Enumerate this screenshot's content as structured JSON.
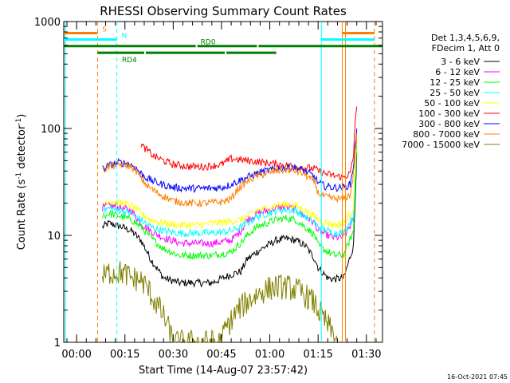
{
  "chart_data": {
    "type": "line",
    "title": "RHESSI Observing Summary Count Rates",
    "xlabel": "Start Time (14-Aug-07 23:57:42)",
    "ylabel_main": "Count Rate (s",
    "ylabel_sup1": "-1",
    "ylabel_mid": " detector",
    "ylabel_sup2": "-1",
    "ylabel_end": ")",
    "y_log": true,
    "ylim": [
      1,
      1000
    ],
    "xlim_minutes": [
      -4,
      95
    ],
    "x_tick_labels": [
      "00:00",
      "00:15",
      "00:30",
      "00:45",
      "01:00",
      "01:15",
      "01:30"
    ],
    "x_tick_minutes": [
      0,
      15,
      30,
      45,
      60,
      75,
      90
    ],
    "y_tick_labels": [
      "1",
      "10",
      "100",
      "1000"
    ],
    "y_tick_values": [
      1,
      10,
      100,
      1000
    ],
    "legend_header": [
      "Det 1,3,4,5,6,9,",
      "FDecim 1, Att 0"
    ],
    "legend_placement": "right",
    "timestamp": "16-Oct-2021 07:45",
    "series": [
      {
        "name": "3 - 6 keV",
        "color": "#000000",
        "x": [
          8,
          10,
          14,
          17,
          20,
          23,
          27,
          32,
          37,
          42,
          48,
          51,
          53,
          56,
          59,
          62,
          65,
          68,
          71,
          74,
          75,
          78,
          80,
          83,
          86,
          87
        ],
        "y": [
          12,
          13,
          12,
          11,
          9,
          6,
          4,
          3.6,
          3.6,
          3.6,
          4.3,
          4.6,
          6,
          7,
          8,
          9,
          9.3,
          9,
          8,
          6,
          5,
          4,
          3.9,
          4,
          8,
          60
        ]
      },
      {
        "name": "6 - 12 keV",
        "color": "#ff00ff",
        "x": [
          8,
          10,
          14,
          17,
          20,
          23,
          27,
          32,
          37,
          42,
          48,
          51,
          53,
          56,
          59,
          62,
          65,
          68,
          71,
          74,
          75,
          78,
          80,
          83,
          86,
          87
        ],
        "y": [
          18,
          19,
          18,
          17,
          13,
          11,
          9.5,
          8.5,
          8.4,
          8.4,
          9,
          11,
          14,
          16,
          17,
          18,
          18.5,
          17.5,
          15,
          13,
          11,
          10,
          9.5,
          9.6,
          14,
          80
        ]
      },
      {
        "name": "12 - 25 keV",
        "color": "#00ff00",
        "x": [
          8,
          10,
          14,
          17,
          20,
          23,
          27,
          32,
          37,
          42,
          48,
          51,
          53,
          56,
          59,
          62,
          65,
          68,
          71,
          74,
          75,
          78,
          80,
          83,
          86,
          87
        ],
        "y": [
          15,
          16,
          15,
          14,
          12,
          9.5,
          7.5,
          6.5,
          6.5,
          6.5,
          7,
          8.5,
          10,
          12,
          13,
          14,
          14.5,
          14,
          12,
          10,
          8,
          7,
          6.5,
          6.6,
          11,
          70
        ]
      },
      {
        "name": "25 - 50 keV",
        "color": "#00ffff",
        "x": [
          8,
          10,
          14,
          17,
          20,
          23,
          27,
          32,
          37,
          42,
          48,
          51,
          53,
          56,
          59,
          62,
          65,
          68,
          71,
          74,
          75,
          78,
          80,
          83,
          86,
          87
        ],
        "y": [
          17,
          18,
          17,
          16,
          14,
          12,
          11,
          10.5,
          10.5,
          10.5,
          11,
          12,
          13,
          15,
          16,
          17,
          17.5,
          17,
          15,
          13,
          12,
          11,
          10.5,
          10.7,
          15,
          80
        ]
      },
      {
        "name": "50 - 100 keV",
        "color": "#ffff00",
        "x": [
          8,
          10,
          14,
          17,
          20,
          23,
          27,
          32,
          37,
          42,
          48,
          51,
          53,
          56,
          59,
          62,
          65,
          68,
          71,
          74,
          75,
          78,
          80,
          83,
          86,
          87
        ],
        "y": [
          20,
          21,
          20,
          19,
          16,
          14,
          13,
          12.5,
          12.5,
          13,
          13.5,
          14,
          15,
          17,
          18,
          19,
          19.5,
          19,
          17,
          15,
          14,
          13,
          12.5,
          13,
          18,
          90
        ]
      },
      {
        "name": "100 - 300 keV",
        "color": "#ff0000",
        "x": [
          20,
          22,
          24,
          27,
          30,
          35,
          40,
          45,
          48,
          48.5,
          74,
          75,
          77,
          80,
          83,
          85,
          86,
          86.5,
          87
        ],
        "y": [
          70,
          62,
          55,
          50,
          46,
          44,
          44,
          46,
          52,
          52,
          42,
          40,
          38,
          36,
          35,
          38,
          55,
          120,
          160
        ]
      },
      {
        "name": "300 - 800 keV",
        "color": "#0000ff",
        "x": [
          8,
          10,
          13,
          16,
          18,
          20,
          22,
          25,
          30,
          35,
          40,
          45,
          48,
          50,
          53,
          56,
          59,
          62,
          65,
          68,
          71,
          74,
          75,
          77,
          80,
          83,
          85,
          86,
          87
        ],
        "y": [
          42,
          45,
          48,
          47,
          44,
          38,
          34,
          31,
          28,
          27.5,
          27.5,
          28,
          30,
          32,
          35,
          38,
          40,
          42,
          43,
          43,
          40,
          35,
          31,
          29,
          28,
          28,
          30,
          45,
          100
        ]
      },
      {
        "name": "800 - 7000 keV",
        "color": "#ff8000",
        "x": [
          8,
          10,
          13,
          16,
          18,
          20,
          22,
          25,
          30,
          35,
          40,
          45,
          48,
          50,
          53,
          56,
          59,
          62,
          65,
          68,
          71,
          74,
          75,
          77,
          80,
          83,
          85,
          86,
          87
        ],
        "y": [
          40,
          44,
          46,
          45,
          42,
          34,
          29,
          25,
          21,
          20,
          20,
          20.5,
          22,
          27,
          32,
          36,
          38,
          40,
          41,
          40,
          37,
          31,
          25,
          23,
          22,
          22,
          24,
          38,
          90
        ]
      },
      {
        "name": "7000 - 15000 keV",
        "color": "#808000",
        "x": [
          8,
          10,
          14,
          17,
          20,
          22,
          24,
          26,
          28,
          30,
          45,
          46,
          48,
          50,
          53,
          56,
          58,
          60,
          62,
          65,
          68,
          70,
          72,
          74,
          75,
          77,
          79,
          81
        ],
        "y": [
          4,
          4.5,
          4.5,
          4,
          3.8,
          3.2,
          2.5,
          2,
          1.5,
          1,
          1,
          1.3,
          1.6,
          2,
          2.4,
          2.8,
          3,
          3.2,
          3.3,
          3.3,
          3.1,
          2.9,
          2.6,
          2.3,
          2,
          1.6,
          1.3,
          1
        ]
      }
    ],
    "state_bars": [
      {
        "label": "S",
        "color": "#ff8000",
        "y_value": 780,
        "segments": [
          [
            -4,
            6.5
          ],
          [
            82.5,
            92.5
          ]
        ]
      },
      {
        "label": "N",
        "color": "#00ffff",
        "y_value": 680,
        "segments": [
          [
            -4,
            12.5
          ],
          [
            76,
            92.5
          ]
        ]
      },
      {
        "label": "RD0",
        "color": "#008000",
        "y_value": 590,
        "segments": [
          [
            -4,
            37
          ],
          [
            37.5,
            56
          ],
          [
            56.5,
            95
          ]
        ]
      },
      {
        "label": "RD4",
        "color": "#008000",
        "y_value": 510,
        "segments": [
          [
            6.5,
            21
          ],
          [
            21.5,
            46
          ],
          [
            46.5,
            62
          ]
        ]
      }
    ],
    "state_labels": {
      "S": "S",
      "N": "N",
      "RD0": "RD0",
      "RD4": "RD4"
    },
    "vlines": [
      {
        "x": -3.5,
        "color": "#00ffff",
        "dash": false
      },
      {
        "x": 6.5,
        "color": "#ff8000",
        "dash": true
      },
      {
        "x": 12.5,
        "color": "#00ffff",
        "dash": true
      },
      {
        "x": 76,
        "color": "#00ffff",
        "dash": false
      },
      {
        "x": 82.5,
        "color": "#ff8000",
        "dash": false
      },
      {
        "x": 83.5,
        "color": "#ff8000",
        "dash": false
      },
      {
        "x": 92.5,
        "color": "#ff8000",
        "dash": true
      }
    ]
  }
}
